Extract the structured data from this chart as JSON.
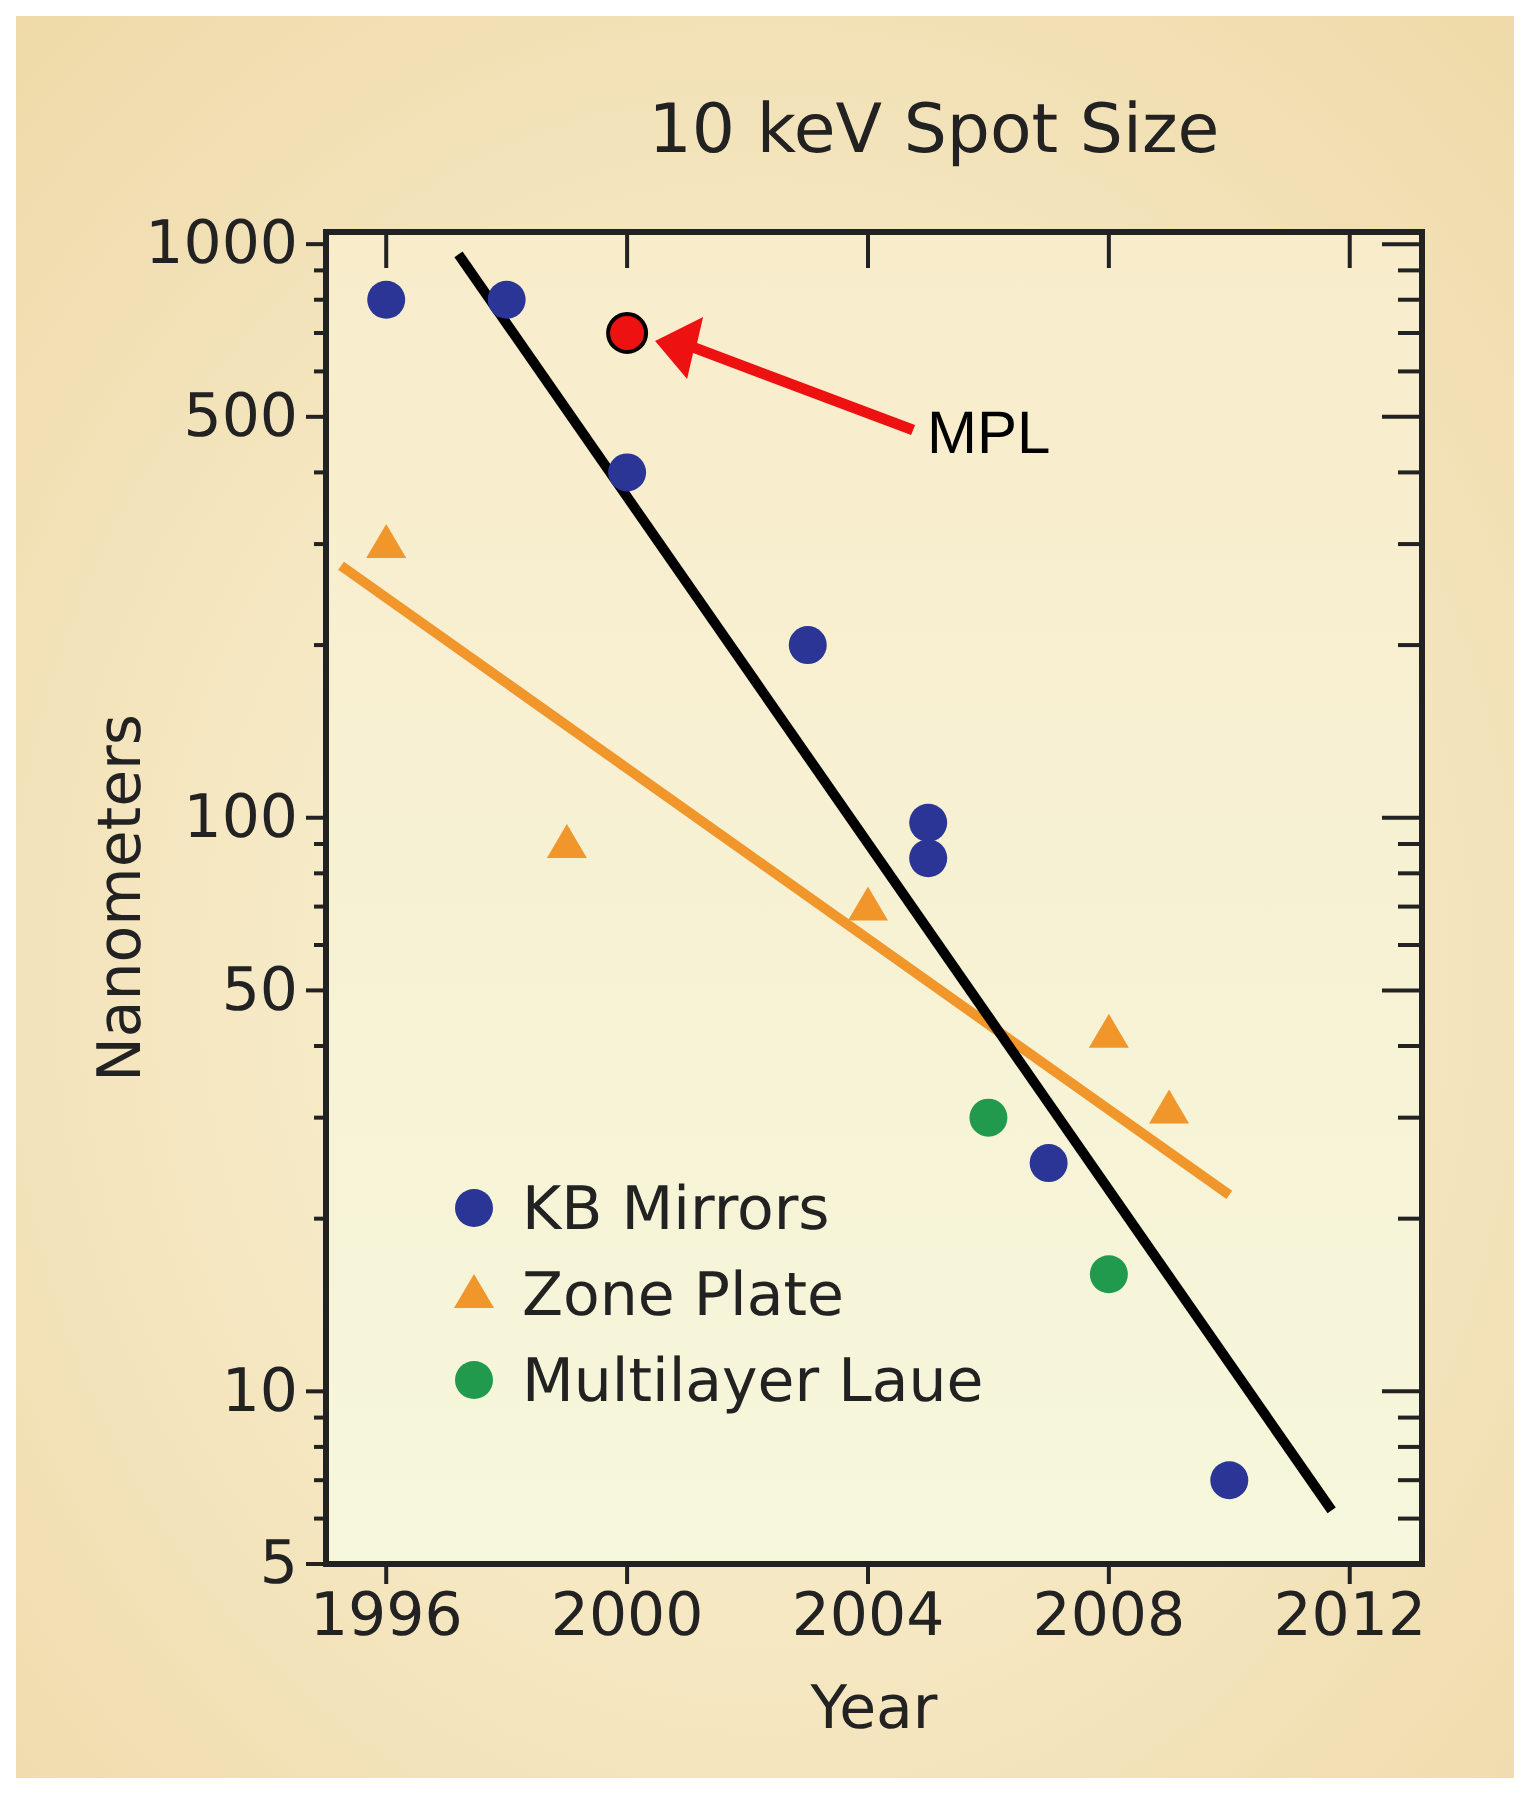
{
  "chart_data": {
    "type": "scatter",
    "title": "10 keV Spot Size",
    "xlabel": "Year",
    "ylabel": "Nanometers",
    "log": "y",
    "grid": false,
    "legend": "bottom left",
    "xlim": [
      1995,
      2013.2
    ],
    "xticks": [
      1996,
      2000,
      2004,
      2008,
      2012
    ],
    "ylim": [
      5,
      1050
    ],
    "yticks": [
      5,
      {
        "value": 6,
        "label": null
      },
      {
        "value": 7,
        "label": null
      },
      {
        "value": 8,
        "label": null
      },
      {
        "value": 9,
        "label": null
      },
      10,
      {
        "value": 20,
        "label": null
      },
      {
        "value": 30,
        "label": null
      },
      {
        "value": 40,
        "label": null
      },
      50,
      {
        "value": 60,
        "label": null
      },
      {
        "value": 70,
        "label": null
      },
      {
        "value": 80,
        "label": null
      },
      {
        "value": 90,
        "label": null
      },
      100,
      {
        "value": 200,
        "label": null
      },
      {
        "value": 300,
        "label": null
      },
      {
        "value": 400,
        "label": null
      },
      500,
      {
        "value": 600,
        "label": null
      },
      {
        "value": 700,
        "label": null
      },
      {
        "value": 800,
        "label": null
      },
      {
        "value": 900,
        "label": null
      },
      1000
    ],
    "series": [
      {
        "type": "line",
        "color": "#f0962a",
        "line_style": "solid",
        "x": [
          1995.25,
          2010.0
        ],
        "values": [
          275,
          22
        ]
      },
      {
        "type": "line",
        "color": "#000000",
        "line_style": "solid",
        "x": [
          1997.2,
          2011.7
        ],
        "values": [
          960,
          6.2
        ]
      },
      {
        "name": "KB Mirrors",
        "color": "#2a3596",
        "marker": "circle",
        "x": [
          1996,
          1998,
          2000,
          2003,
          2005,
          2005,
          2007,
          2010
        ],
        "values": [
          800,
          800,
          400,
          200,
          98,
          85,
          25,
          7
        ]
      },
      {
        "name": "Zone Plate",
        "color": "#f0962a",
        "marker": "triangle",
        "x": [
          1996,
          1999,
          2004,
          2008,
          2009
        ],
        "values": [
          300,
          90,
          70,
          42,
          31
        ]
      },
      {
        "name": "Multilayer Laue",
        "color": "#229a4e",
        "marker": "circle",
        "x": [
          2006,
          2008
        ],
        "values": [
          30,
          16
        ]
      },
      {
        "color": "#ee1111",
        "marker": "circle",
        "x": [
          2000
        ],
        "values": [
          700
        ]
      }
    ],
    "annotations": [
      "MPL"
    ]
  }
}
